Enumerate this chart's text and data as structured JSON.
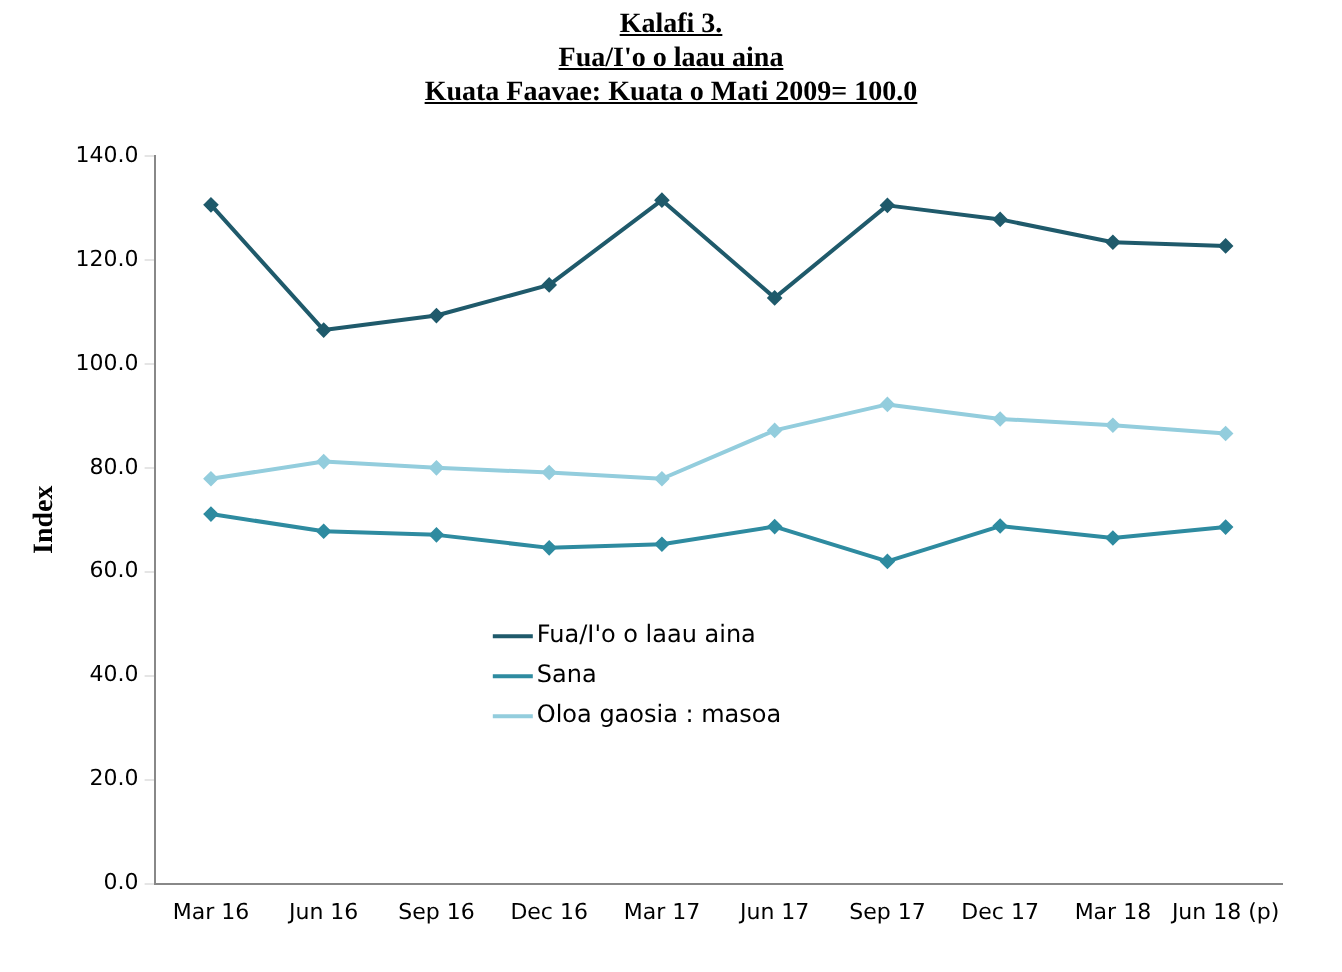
{
  "chart_data": {
    "type": "line",
    "title": [
      "Kalafi 3.",
      "Fua/I'o o laau aina",
      "Kuata Faavae: Kuata o Mati 2009= 100.0"
    ],
    "ylabel": "Index",
    "categories": [
      "Mar 16",
      "Jun 16",
      "Sep 16",
      "Dec 16",
      "Mar 17",
      "Jun 17",
      "Sep 17",
      "Dec 17",
      "Mar 18",
      "Jun 18 (p)"
    ],
    "series": [
      {
        "name": "Fua/I'o o laau aina",
        "color": "#1f5a6b",
        "values": [
          130.6,
          106.5,
          109.3,
          115.2,
          131.5,
          112.7,
          130.5,
          127.8,
          123.4,
          122.7
        ]
      },
      {
        "name": "Sana",
        "color": "#2e8ba0",
        "values": [
          71.1,
          67.8,
          67.1,
          64.6,
          65.3,
          68.7,
          62.0,
          68.8,
          66.5,
          68.6
        ]
      },
      {
        "name": "Oloa gaosia : masoa",
        "color": "#93cddd",
        "values": [
          77.9,
          81.2,
          80.0,
          79.1,
          77.9,
          87.2,
          92.2,
          89.4,
          88.2,
          86.6
        ]
      }
    ],
    "ylim": [
      0,
      140
    ],
    "yticks": [
      {
        "value": 0,
        "label": "0.0"
      },
      {
        "value": 20,
        "label": "20.0"
      },
      {
        "value": 40,
        "label": "40.0"
      },
      {
        "value": 60,
        "label": "60.0"
      },
      {
        "value": 80,
        "label": "80.0"
      },
      {
        "value": 100,
        "label": "100.0"
      },
      {
        "value": 120,
        "label": "120.0"
      },
      {
        "value": 140,
        "label": "140.0"
      }
    ],
    "grid": false,
    "legend": "bottom",
    "marker": "diamond",
    "line_style": "solid"
  }
}
